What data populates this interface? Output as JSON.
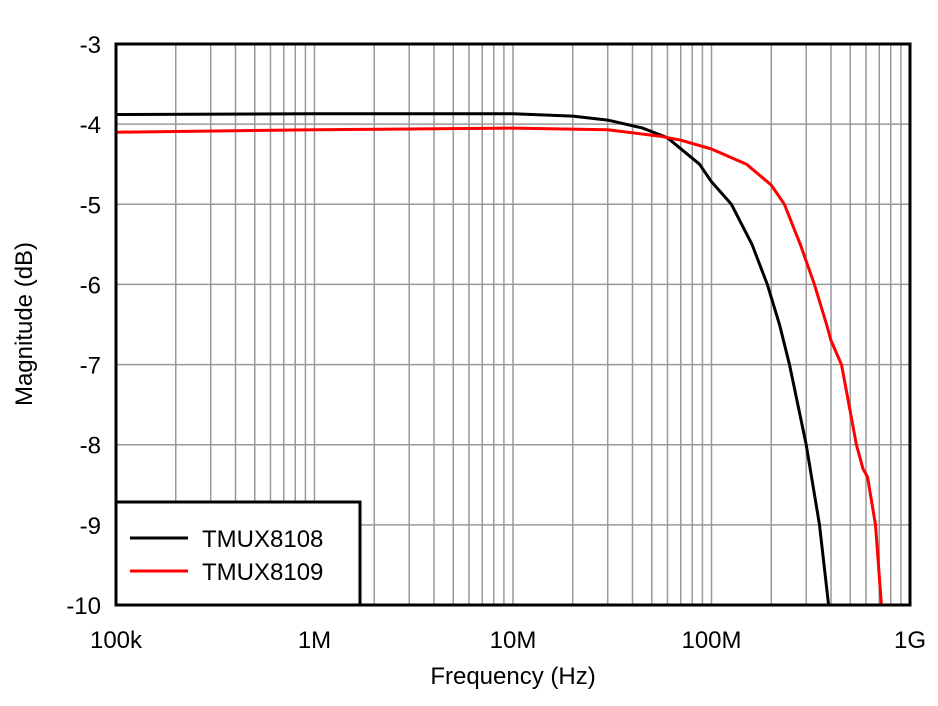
{
  "chart_data": {
    "type": "line",
    "title": "",
    "xlabel": "Frequency (Hz)",
    "ylabel": "Magnitude (dB)",
    "xscale": "log",
    "xlim": [
      100000,
      1000000000
    ],
    "ylim": [
      -10,
      -3
    ],
    "xticks": [
      100000,
      1000000,
      10000000,
      100000000,
      1000000000
    ],
    "xtick_labels": [
      "100k",
      "1M",
      "10M",
      "100M",
      "1G"
    ],
    "yticks": [
      -3,
      -4,
      -5,
      -6,
      -7,
      -8,
      -9,
      -10
    ],
    "ytick_labels": [
      "-3",
      "-4",
      "-5",
      "-6",
      "-7",
      "-8",
      "-9",
      "-10"
    ],
    "grid": true,
    "legend_position": "bottom-left",
    "series": [
      {
        "name": "TMUX8108",
        "color": "#000000",
        "x": [
          100000,
          1000000,
          10000000,
          20000000,
          30000000,
          45000000,
          60000000,
          87000000,
          100000000,
          126000000,
          160000000,
          191000000,
          220000000,
          247000000,
          300000000,
          350000000,
          389000000
        ],
        "y": [
          -3.88,
          -3.87,
          -3.87,
          -3.9,
          -3.95,
          -4.05,
          -4.17,
          -4.5,
          -4.72,
          -5.0,
          -5.5,
          -6.0,
          -6.5,
          -7.0,
          -8.0,
          -9.0,
          -10.0
        ]
      },
      {
        "name": "TMUX8109",
        "color": "#ff0000",
        "x": [
          100000,
          1000000,
          10000000,
          30000000,
          55000000,
          70000000,
          100000000,
          150000000,
          200000000,
          233000000,
          280000000,
          330000000,
          380000000,
          400000000,
          452000000,
          537000000,
          580000000,
          611000000,
          670000000,
          718000000
        ],
        "y": [
          -4.1,
          -4.07,
          -4.05,
          -4.07,
          -4.15,
          -4.2,
          -4.31,
          -4.5,
          -4.76,
          -5.0,
          -5.5,
          -6.0,
          -6.5,
          -6.7,
          -7.0,
          -8.0,
          -8.3,
          -8.4,
          -9.0,
          -10.0
        ]
      }
    ]
  }
}
